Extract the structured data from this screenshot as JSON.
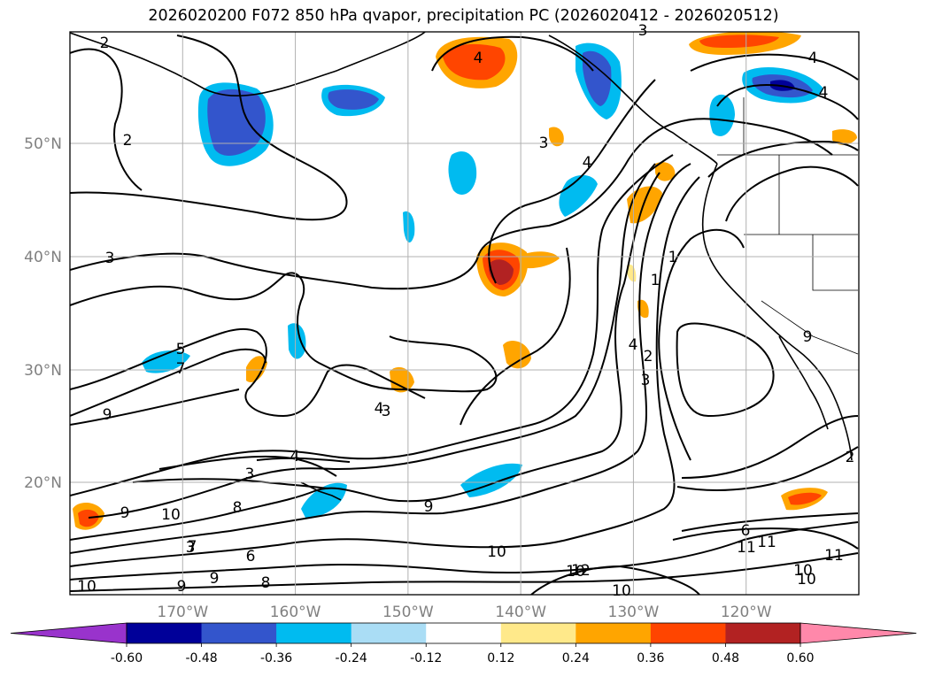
{
  "chart_data": {
    "type": "heatmap",
    "title": "2026020200 F072 850 hPa qvapor, precipitation PC (2026020412 - 2026020512)",
    "lat_ticks": [
      "50°N",
      "40°N",
      "30°N",
      "20°N"
    ],
    "lat_values": [
      50,
      40,
      30,
      20
    ],
    "lon_ticks": [
      "170°W",
      "160°W",
      "150°W",
      "140°W",
      "130°W",
      "120°W"
    ],
    "lon_values": [
      -170,
      -160,
      -150,
      -140,
      -130,
      -120
    ],
    "extent": {
      "lon": [
        -180,
        -110
      ],
      "lat": [
        10,
        60
      ]
    },
    "grid": true,
    "colorbar": {
      "ticks": [
        "-0.60",
        "-0.48",
        "-0.36",
        "-0.24",
        "-0.12",
        "0.12",
        "0.24",
        "0.36",
        "0.48",
        "0.60"
      ],
      "levels": [
        -0.6,
        -0.48,
        -0.36,
        -0.24,
        -0.12,
        0.12,
        0.24,
        0.36,
        0.48,
        0.6
      ],
      "colors": [
        "#9933cc",
        "#000099",
        "#3355cc",
        "#00bbf0",
        "#aaddf5",
        "#ffffff",
        "#ffe98a",
        "#ffa500",
        "#ff4500",
        "#b22222",
        "#ff88aa"
      ],
      "extend": "both"
    },
    "contour_labels": [
      "2",
      "2",
      "3",
      "5",
      "7",
      "9",
      "9",
      "10",
      "3",
      "4",
      "3",
      "8",
      "6",
      "9",
      "10",
      "11",
      "12",
      "7",
      "3",
      "9",
      "8",
      "9",
      "10",
      "10",
      "10",
      "4",
      "3",
      "4",
      "4",
      "4",
      "1",
      "1",
      "4",
      "2",
      "3",
      "6",
      "10",
      "11",
      "11",
      "10",
      "9",
      "2",
      "4",
      "3"
    ],
    "shaded_areas": [
      {
        "value": 0.45,
        "lon": -141,
        "lat": 39
      },
      {
        "value": 0.4,
        "lon": -143,
        "lat": 56.5
      },
      {
        "value": 0.45,
        "lon": -178,
        "lat": 16.5
      },
      {
        "value": -0.4,
        "lon": -163,
        "lat": 53
      },
      {
        "value": -0.3,
        "lon": -146,
        "lat": 20
      },
      {
        "value": -0.4,
        "lon": -116,
        "lat": 55
      }
    ]
  }
}
